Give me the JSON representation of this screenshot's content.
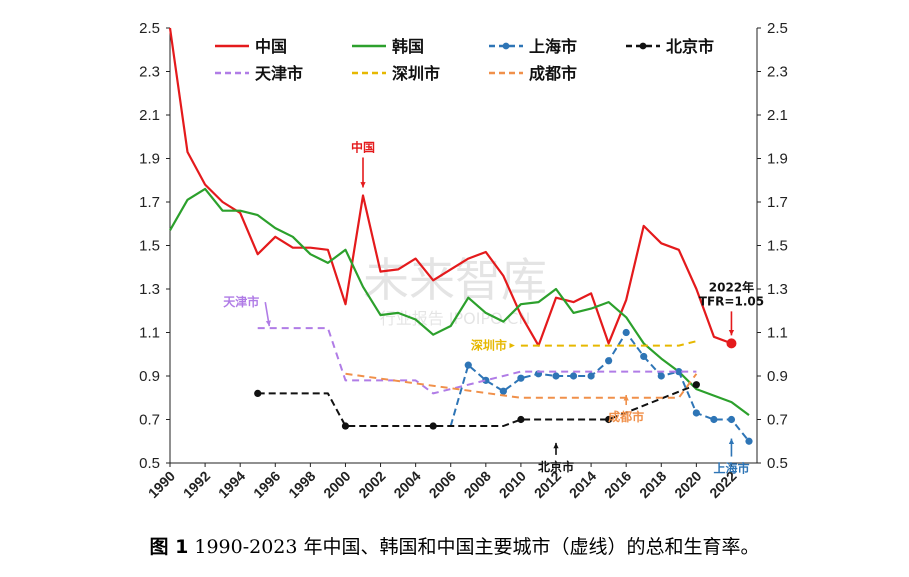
{
  "caption": {
    "figure_label": "图 1",
    "text": " 1990-2023 年中国、韩国和中国主要城市（虚线）的总和生育率。"
  },
  "watermark": {
    "main": "未来智库",
    "sub": "行业报告 IPOIPO.CN"
  },
  "colors": {
    "china": "#e41a1c",
    "korea": "#2ca02c",
    "shanghai": "#2e75b6",
    "beijing": "#111111",
    "tianjin": "#b07ce6",
    "shenzhen": "#e6b800",
    "chengdu": "#f0904a"
  },
  "chart_data": {
    "type": "line",
    "ylim": [
      0.5,
      2.5
    ],
    "xlim": [
      1990,
      2023
    ],
    "yticks": [
      "2.5",
      "2.3",
      "2.1",
      "1.9",
      "1.7",
      "1.5",
      "1.3",
      "1.1",
      "0.9",
      "0.7",
      "0.5"
    ],
    "xticks": [
      "1990",
      "1992",
      "1994",
      "1996",
      "1998",
      "2000",
      "2002",
      "2004",
      "2006",
      "2008",
      "2010",
      "2012",
      "2014",
      "2016",
      "2018",
      "2020",
      "2022"
    ],
    "legend": [
      {
        "key": "china",
        "label": "中国",
        "style": "solid"
      },
      {
        "key": "korea",
        "label": "韩国",
        "style": "solid"
      },
      {
        "key": "shanghai",
        "label": "上海市",
        "style": "dash-dot"
      },
      {
        "key": "beijing",
        "label": "北京市",
        "style": "dash-dot"
      },
      {
        "key": "tianjin",
        "label": "天津市",
        "style": "dash"
      },
      {
        "key": "shenzhen",
        "label": "深圳市",
        "style": "dash"
      },
      {
        "key": "chengdu",
        "label": "成都市",
        "style": "dash"
      }
    ],
    "series": [
      {
        "key": "china",
        "name": "中国",
        "style": "solid",
        "x": [
          1990,
          1991,
          1992,
          1993,
          1994,
          1995,
          1996,
          1997,
          1998,
          1999,
          2000,
          2001,
          2002,
          2003,
          2004,
          2005,
          2006,
          2007,
          2008,
          2009,
          2010,
          2011,
          2012,
          2013,
          2014,
          2015,
          2016,
          2017,
          2018,
          2019,
          2020,
          2021,
          2022
        ],
        "y": [
          2.5,
          1.93,
          1.78,
          1.7,
          1.65,
          1.46,
          1.54,
          1.49,
          1.49,
          1.48,
          1.23,
          1.73,
          1.38,
          1.39,
          1.44,
          1.34,
          1.39,
          1.44,
          1.47,
          1.36,
          1.18,
          1.04,
          1.26,
          1.24,
          1.28,
          1.05,
          1.25,
          1.59,
          1.51,
          1.48,
          1.3,
          1.08,
          1.05
        ]
      },
      {
        "key": "korea",
        "name": "韩国",
        "style": "solid",
        "x": [
          1990,
          1991,
          1992,
          1993,
          1994,
          1995,
          1996,
          1997,
          1998,
          1999,
          2000,
          2001,
          2002,
          2003,
          2004,
          2005,
          2006,
          2007,
          2008,
          2009,
          2010,
          2011,
          2012,
          2013,
          2014,
          2015,
          2016,
          2017,
          2018,
          2019,
          2020,
          2021,
          2022,
          2023
        ],
        "y": [
          1.57,
          1.71,
          1.76,
          1.66,
          1.66,
          1.64,
          1.58,
          1.54,
          1.46,
          1.42,
          1.48,
          1.31,
          1.18,
          1.19,
          1.16,
          1.09,
          1.13,
          1.26,
          1.19,
          1.15,
          1.23,
          1.24,
          1.3,
          1.19,
          1.21,
          1.24,
          1.17,
          1.05,
          0.98,
          0.92,
          0.84,
          0.81,
          0.78,
          0.72
        ]
      },
      {
        "key": "shanghai",
        "name": "上海市",
        "style": "dash-dot",
        "x": [
          2006,
          2007,
          2008,
          2009,
          2010,
          2011,
          2012,
          2013,
          2014,
          2015,
          2016,
          2017,
          2018,
          2019,
          2020,
          2021,
          2022,
          2023
        ],
        "y": [
          0.67,
          0.95,
          0.88,
          0.83,
          0.89,
          0.91,
          0.9,
          0.9,
          0.9,
          0.97,
          1.1,
          0.99,
          0.9,
          0.92,
          0.73,
          0.7,
          0.7,
          0.6
        ],
        "markers": [
          2007,
          2008,
          2009,
          2010,
          2011,
          2012,
          2013,
          2014,
          2015,
          2016,
          2017,
          2018,
          2019,
          2020,
          2021,
          2022,
          2023
        ]
      },
      {
        "key": "beijing",
        "name": "北京市",
        "style": "dash-dot",
        "x": [
          1995,
          1999,
          2000,
          2005,
          2009,
          2010,
          2015,
          2020
        ],
        "y": [
          0.82,
          0.82,
          0.67,
          0.67,
          0.67,
          0.7,
          0.7,
          0.86
        ],
        "markers": [
          1995,
          2000,
          2005,
          2010,
          2015,
          2020
        ]
      },
      {
        "key": "tianjin",
        "name": "天津市",
        "style": "dash",
        "x": [
          1995,
          1999,
          2000,
          2004,
          2005,
          2010,
          2020
        ],
        "y": [
          1.12,
          1.12,
          0.88,
          0.88,
          0.82,
          0.92,
          0.92
        ]
      },
      {
        "key": "shenzhen",
        "name": "深圳市",
        "style": "dash",
        "x": [
          2010,
          2019,
          2020
        ],
        "y": [
          1.04,
          1.04,
          1.06
        ]
      },
      {
        "key": "chengdu",
        "name": "成都市",
        "style": "dash",
        "x": [
          2000,
          2010,
          2019,
          2020
        ],
        "y": [
          0.91,
          0.8,
          0.8,
          0.91
        ]
      }
    ],
    "annotations": [
      {
        "key": "china",
        "text": "中国",
        "x": 2001,
        "y": 1.73
      },
      {
        "key": "tianjin",
        "text": "天津市",
        "x": 1996,
        "y": 1.12
      },
      {
        "key": "shenzhen",
        "text": "深圳市",
        "x": 2010,
        "y": 1.04
      },
      {
        "key": "chengdu",
        "text": "成都市",
        "x": 2016,
        "y": 0.84
      },
      {
        "key": "beijing",
        "text": "北京市",
        "x": 2012,
        "y": 0.62
      },
      {
        "key": "shanghai",
        "text": "上海市",
        "x": 2022,
        "y": 0.64
      },
      {
        "key": "china",
        "text": "2022年",
        "x": 2022,
        "y": 1.05
      },
      {
        "key": "china",
        "text": "TFR=1.05",
        "x": 2022,
        "y": 1.05
      }
    ]
  }
}
